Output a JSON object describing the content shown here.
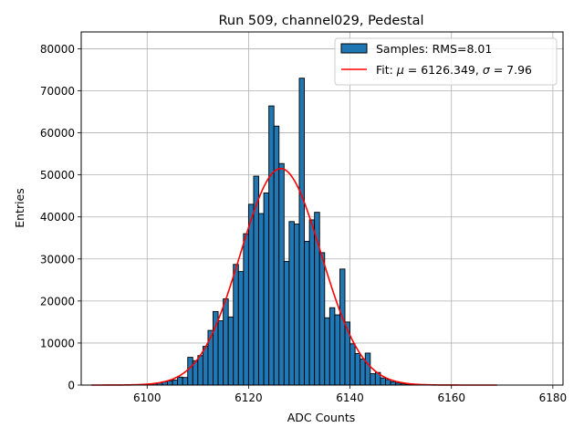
{
  "chart_data": {
    "type": "bar",
    "title": "Run 509, channel029, Pedestal",
    "xlabel": "ADC Counts",
    "ylabel": "Entries",
    "xlim": [
      6087,
      6182
    ],
    "ylim": [
      0,
      84000
    ],
    "xticks": [
      6100,
      6120,
      6140,
      6160,
      6180
    ],
    "yticks": [
      0,
      10000,
      20000,
      30000,
      40000,
      50000,
      60000,
      70000,
      80000
    ],
    "grid": true,
    "legend_position": "top-right",
    "bin_width": 1,
    "bins": [
      {
        "x": 6101,
        "y": 300
      },
      {
        "x": 6102,
        "y": 500
      },
      {
        "x": 6103,
        "y": 800
      },
      {
        "x": 6104,
        "y": 1000
      },
      {
        "x": 6105,
        "y": 1200
      },
      {
        "x": 6106,
        "y": 1900
      },
      {
        "x": 6107,
        "y": 1800
      },
      {
        "x": 6108,
        "y": 6600
      },
      {
        "x": 6109,
        "y": 5800
      },
      {
        "x": 6110,
        "y": 7000
      },
      {
        "x": 6111,
        "y": 9200
      },
      {
        "x": 6112,
        "y": 13000
      },
      {
        "x": 6113,
        "y": 17500
      },
      {
        "x": 6114,
        "y": 15300
      },
      {
        "x": 6115,
        "y": 20500
      },
      {
        "x": 6116,
        "y": 16200
      },
      {
        "x": 6117,
        "y": 28700
      },
      {
        "x": 6118,
        "y": 27000
      },
      {
        "x": 6119,
        "y": 36000
      },
      {
        "x": 6120,
        "y": 43000
      },
      {
        "x": 6121,
        "y": 49700
      },
      {
        "x": 6122,
        "y": 40800
      },
      {
        "x": 6123,
        "y": 45700
      },
      {
        "x": 6124,
        "y": 66400
      },
      {
        "x": 6125,
        "y": 61600
      },
      {
        "x": 6126,
        "y": 52700
      },
      {
        "x": 6127,
        "y": 29400
      },
      {
        "x": 6128,
        "y": 38900
      },
      {
        "x": 6129,
        "y": 38300
      },
      {
        "x": 6130,
        "y": 73000
      },
      {
        "x": 6131,
        "y": 34200
      },
      {
        "x": 6132,
        "y": 39300
      },
      {
        "x": 6133,
        "y": 41100
      },
      {
        "x": 6134,
        "y": 31500
      },
      {
        "x": 6135,
        "y": 16000
      },
      {
        "x": 6136,
        "y": 18400
      },
      {
        "x": 6137,
        "y": 16700
      },
      {
        "x": 6138,
        "y": 27600
      },
      {
        "x": 6139,
        "y": 15000
      },
      {
        "x": 6140,
        "y": 9800
      },
      {
        "x": 6141,
        "y": 7500
      },
      {
        "x": 6142,
        "y": 6200
      },
      {
        "x": 6143,
        "y": 7600
      },
      {
        "x": 6144,
        "y": 2700
      },
      {
        "x": 6145,
        "y": 3000
      },
      {
        "x": 6146,
        "y": 1700
      },
      {
        "x": 6147,
        "y": 1300
      },
      {
        "x": 6148,
        "y": 800
      },
      {
        "x": 6149,
        "y": 500
      },
      {
        "x": 6150,
        "y": 300
      },
      {
        "x": 6151,
        "y": 200
      },
      {
        "x": 6152,
        "y": 150
      },
      {
        "x": 6153,
        "y": 100
      }
    ],
    "fit": {
      "mu": 6126.349,
      "sigma": 7.96,
      "amplitude": 51500,
      "x_range": [
        6089,
        6169
      ]
    },
    "series": [
      {
        "name": "Samples: RMS=8.01",
        "kind": "histogram",
        "color": "#1f77b4",
        "edge_color": "#000000"
      },
      {
        "name_prefix": "Fit: ",
        "mu_symbol": "μ",
        "mu_text": " = 6126.349, ",
        "sigma_symbol": "σ",
        "sigma_text": " = 7.96",
        "kind": "line",
        "color": "#ff0000"
      }
    ]
  }
}
